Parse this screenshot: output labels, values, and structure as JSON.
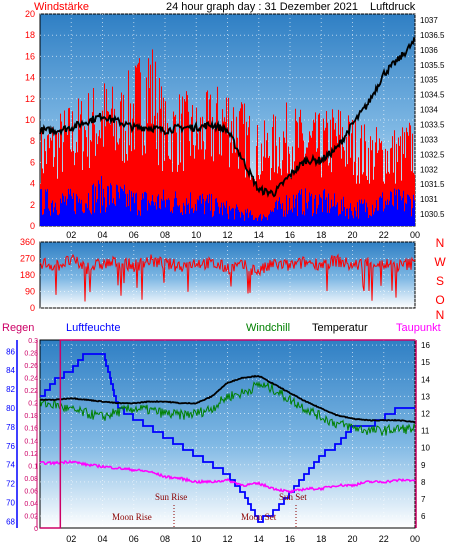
{
  "chart_data": [
    {
      "type": "line",
      "title": "24 hour graph day : 31 Dezember 2021",
      "left_axis_label": "Windstärke",
      "right_axis_label": "Luftdruck",
      "x_ticks": [
        "02",
        "04",
        "06",
        "08",
        "10",
        "12",
        "14",
        "16",
        "18",
        "20",
        "22",
        "00"
      ],
      "left_ticks": [
        0,
        2,
        4,
        6,
        8,
        10,
        12,
        14,
        16,
        18,
        20
      ],
      "left_range": [
        0,
        20
      ],
      "right_ticks": [
        "1030.5",
        "1031",
        "1031.5",
        "1032",
        "1032.5",
        "1033",
        "1033.5",
        "1034",
        "1034.5",
        "1035",
        "1035.5",
        "1036",
        "1036.5",
        "1037"
      ],
      "right_range": [
        1030.1,
        1037.2
      ],
      "series": [
        {
          "name": "Windstärke (gust)",
          "color": "#ff0000",
          "hours": [
            0,
            1,
            2,
            3,
            4,
            5,
            6,
            7,
            8,
            9,
            10,
            11,
            12,
            13,
            14,
            15,
            16,
            17,
            18,
            19,
            20,
            21,
            22,
            23,
            24
          ],
          "values": [
            8,
            9,
            10,
            11,
            12,
            11,
            13,
            16,
            10,
            11,
            10,
            11,
            12,
            10,
            8,
            9,
            10,
            9,
            9,
            10,
            9,
            8,
            8,
            8,
            9
          ]
        },
        {
          "name": "Windstärke (mean)",
          "color": "#0000ff",
          "hours": [
            0,
            2,
            4,
            6,
            8,
            10,
            12,
            14,
            16,
            18,
            20,
            22,
            24
          ],
          "values": [
            3,
            3,
            4,
            3,
            3,
            3,
            2,
            1,
            3,
            3,
            2,
            3,
            3
          ]
        },
        {
          "name": "Luftdruck",
          "color": "#000000",
          "hours": [
            0,
            1,
            2,
            3,
            4,
            5,
            6,
            7,
            8,
            9,
            10,
            11,
            12,
            13,
            14,
            15,
            16,
            17,
            18,
            19,
            20,
            21,
            22,
            23,
            24
          ],
          "values": [
            1033.3,
            1033.3,
            1033.4,
            1033.6,
            1033.8,
            1033.6,
            1033.4,
            1033.4,
            1033.3,
            1033.4,
            1033.4,
            1033.5,
            1033.3,
            1032.3,
            1031.3,
            1031.2,
            1031.8,
            1032.3,
            1032.3,
            1032.7,
            1033.5,
            1034.2,
            1035.2,
            1035.7,
            1036.3
          ]
        }
      ]
    },
    {
      "type": "scatter",
      "left_ticks": [
        0,
        90,
        180,
        270,
        360
      ],
      "left_range": [
        0,
        360
      ],
      "right_letters": [
        "N",
        "W",
        "S",
        "O",
        "N"
      ],
      "x_ticks": [],
      "series": [
        {
          "name": "Windrichtung",
          "color": "#ff0000",
          "hours": [
            0,
            1,
            2,
            3,
            4,
            5,
            6,
            7,
            8,
            9,
            10,
            11,
            12,
            13,
            14,
            15,
            16,
            17,
            18,
            19,
            20,
            21,
            22,
            23,
            24
          ],
          "values": [
            250,
            230,
            260,
            220,
            240,
            250,
            230,
            260,
            240,
            230,
            250,
            240,
            220,
            230,
            200,
            240,
            230,
            250,
            240,
            260,
            230,
            250,
            240,
            230,
            245
          ]
        }
      ]
    },
    {
      "type": "line",
      "top_labels": [
        "Regen",
        "Luftfeuchte",
        "Windchill",
        "Temperatur",
        "Taupunkt"
      ],
      "x_ticks": [
        "02",
        "04",
        "06",
        "08",
        "10",
        "12",
        "14",
        "16",
        "18",
        "20",
        "22",
        "00"
      ],
      "rain_ticks": [
        "0",
        "0.02",
        "0.04",
        "0.06",
        "0.08",
        "0.1",
        "0.12",
        "0.14",
        "0.16",
        "0.18",
        "0.2",
        "0.22",
        "0.24",
        "0.26",
        "0.28",
        "0.3"
      ],
      "rain_range": [
        0,
        0.3
      ],
      "humidity_ticks": [
        68,
        70,
        72,
        74,
        76,
        78,
        80,
        82,
        84,
        86
      ],
      "humidity_range": [
        67.3,
        87.2
      ],
      "temp_ticks": [
        6,
        7,
        8,
        9,
        10,
        11,
        12,
        13,
        14,
        15,
        16
      ],
      "temp_range": [
        5.3,
        16.3
      ],
      "annotations": [
        "Sun Rise",
        "Sun Set",
        "Moon Rise",
        "Moon Set"
      ],
      "series": [
        {
          "name": "Temperatur",
          "color": "#000000",
          "hours": [
            0,
            1,
            2,
            3,
            4,
            5,
            6,
            7,
            8,
            9,
            10,
            11,
            12,
            13,
            14,
            15,
            16,
            17,
            18,
            19,
            20,
            21,
            22,
            23,
            24
          ],
          "values": [
            12.8,
            12.8,
            12.9,
            12.8,
            12.7,
            12.6,
            12.6,
            12.7,
            12.7,
            12.6,
            12.6,
            13.0,
            13.8,
            14.1,
            14.2,
            13.7,
            13.2,
            12.7,
            12.3,
            11.9,
            11.7,
            11.6,
            11.6,
            11.6,
            11.5
          ]
        },
        {
          "name": "Windchill",
          "color": "#008000",
          "hours": [
            0,
            1,
            2,
            3,
            4,
            5,
            6,
            7,
            8,
            9,
            10,
            11,
            12,
            13,
            14,
            15,
            16,
            17,
            18,
            19,
            20,
            21,
            22,
            23,
            24
          ],
          "values": [
            12.6,
            12.5,
            12.2,
            12.0,
            11.8,
            12.1,
            12.3,
            12.2,
            12.0,
            11.9,
            12.0,
            12.3,
            13.0,
            13.2,
            13.7,
            13.4,
            12.8,
            12.3,
            11.8,
            11.4,
            11.2,
            11.0,
            11.0,
            11.1,
            11.1
          ]
        },
        {
          "name": "Taupunkt",
          "color": "#ff00ff",
          "hours": [
            0,
            1,
            2,
            3,
            4,
            5,
            6,
            7,
            8,
            9,
            10,
            11,
            12,
            13,
            14,
            15,
            16,
            17,
            18,
            19,
            20,
            21,
            22,
            23,
            24
          ],
          "values": [
            9.1,
            9.1,
            9.2,
            9.0,
            8.9,
            8.8,
            8.7,
            8.6,
            8.3,
            8.2,
            8.0,
            8.0,
            8.1,
            7.8,
            7.9,
            7.6,
            7.4,
            7.6,
            7.6,
            7.8,
            7.8,
            8.0,
            8.0,
            8.1,
            8.1
          ]
        },
        {
          "name": "Luftfeuchte",
          "color": "#0000ff",
          "hours": [
            0,
            1,
            2,
            3,
            4,
            5,
            6,
            7,
            8,
            9,
            10,
            11,
            12,
            13,
            14,
            15,
            16,
            17,
            18,
            19,
            20,
            21,
            22,
            23,
            24
          ],
          "values": [
            81,
            83,
            84,
            86,
            86,
            80,
            79,
            78,
            77,
            76,
            75,
            74,
            73,
            71,
            68,
            69,
            71,
            73,
            75,
            76,
            78,
            78,
            79,
            80,
            80
          ]
        },
        {
          "name": "Regen",
          "color": "#cc0066",
          "hours": [
            0,
            1,
            24
          ],
          "values": [
            0,
            0.3,
            0.3
          ]
        }
      ]
    }
  ]
}
